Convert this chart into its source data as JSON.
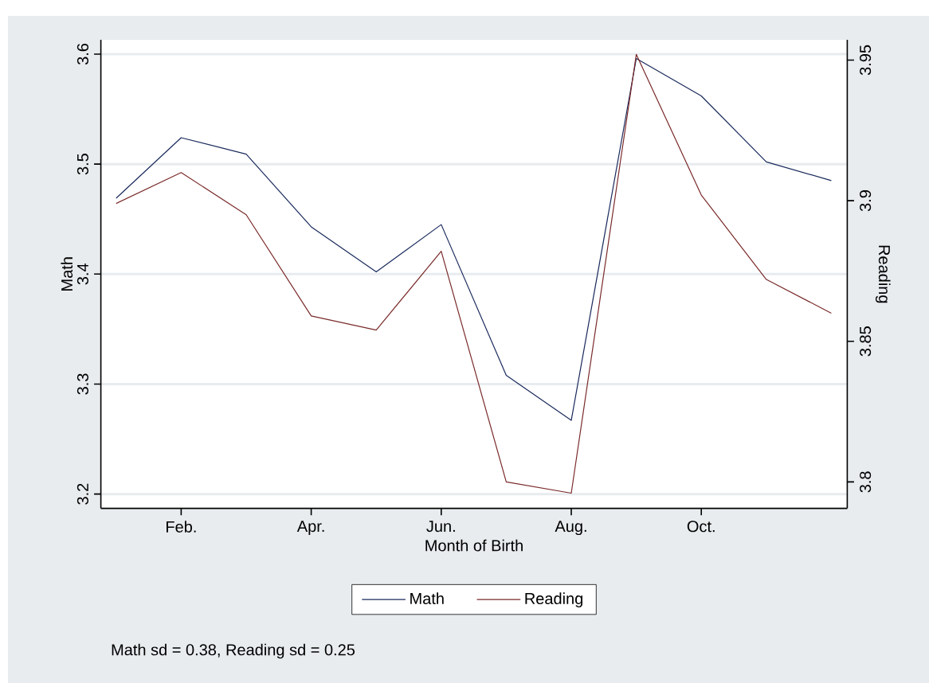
{
  "chart_data": {
    "type": "line",
    "categories": [
      null,
      "Feb.",
      null,
      "Apr.",
      null,
      "Jun.",
      null,
      "Aug.",
      null,
      "Oct.",
      null,
      null
    ],
    "xlabel": "Month of Birth",
    "ylabel": "Math",
    "y2label": "Reading",
    "ylim": [
      3.187,
      3.613
    ],
    "yticks": [
      3.2,
      3.3,
      3.4,
      3.5,
      3.6
    ],
    "y2lim": [
      3.7906,
      3.9572
    ],
    "y2ticks": [
      3.8,
      3.85,
      3.9,
      3.95
    ],
    "series": [
      {
        "name": "Math",
        "color": "#1a2a5c",
        "values": [
          3.469,
          3.524,
          3.509,
          3.443,
          3.402,
          3.445,
          3.308,
          3.267,
          3.596,
          3.562,
          3.502,
          3.485
        ]
      },
      {
        "name": "Reading",
        "color": "#7a2a2a",
        "axis": "y2",
        "values": [
          3.899,
          3.91,
          3.895,
          3.859,
          3.854,
          3.882,
          3.8,
          3.796,
          3.952,
          3.902,
          3.872,
          3.86
        ]
      }
    ],
    "grid": "y",
    "legend": "bottom",
    "annotations": [
      "Math sd = 0.38, Reading sd = 0.25"
    ]
  }
}
